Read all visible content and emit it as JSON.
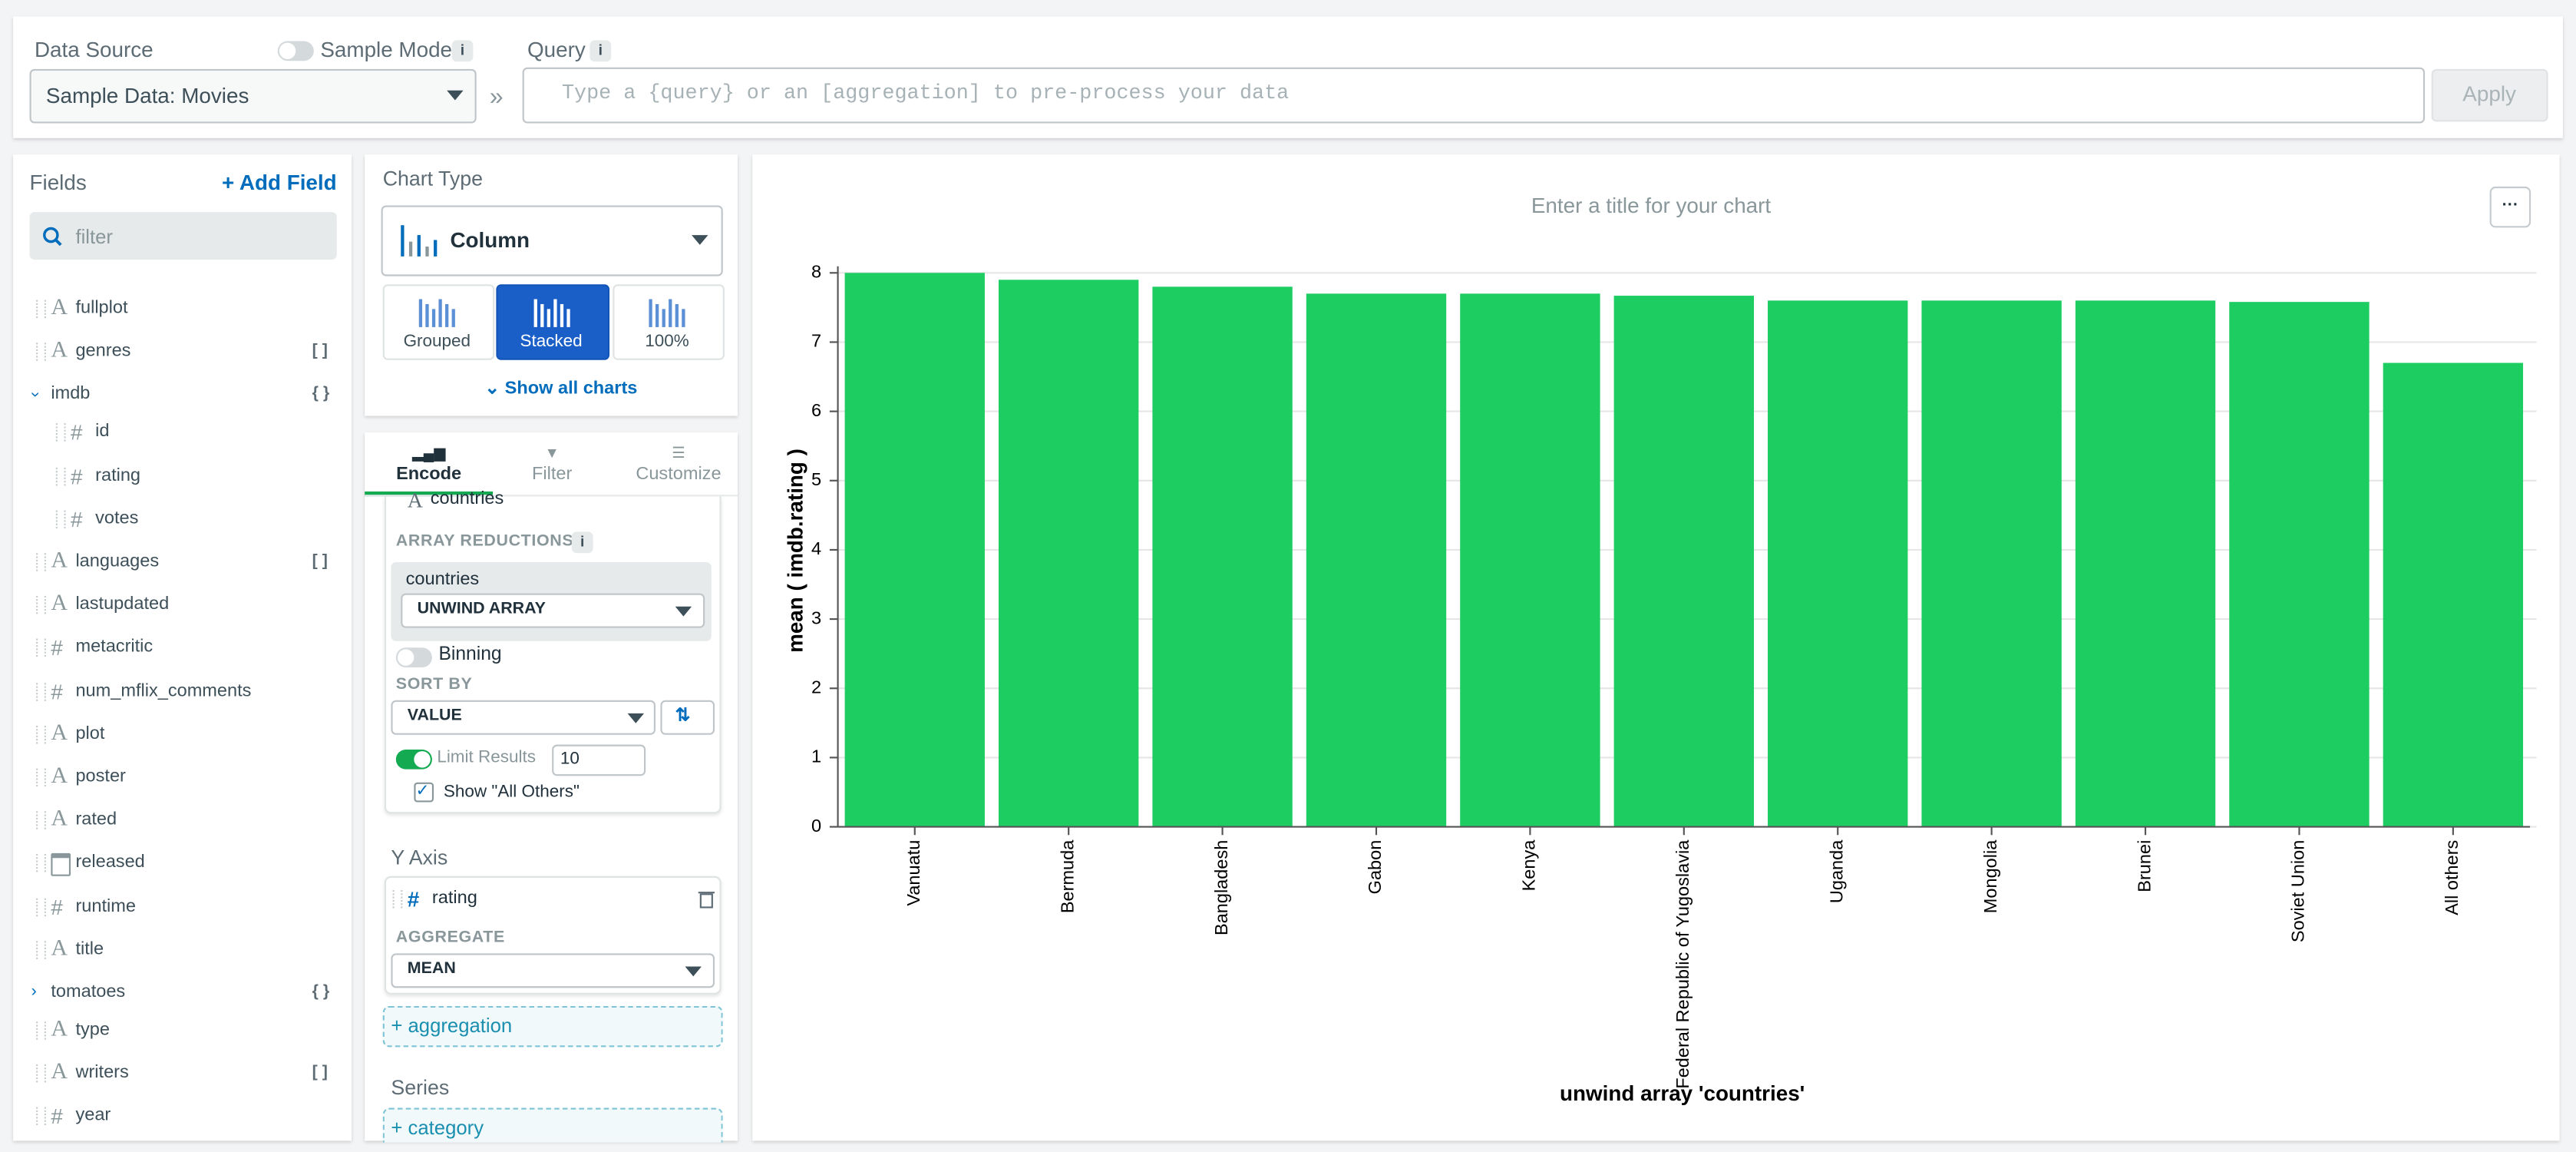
{
  "header": {
    "data_source_label": "Data Source",
    "sample_mode_label": "Sample Mode",
    "info": "i",
    "data_source": "Sample Data: Movies",
    "separator": "»",
    "query_label": "Query",
    "query_placeholder": "Type a {query} or an [aggregation] to pre-process your data",
    "apply": "Apply"
  },
  "fields": {
    "title": "Fields",
    "add_field": "+ Add Field",
    "filter_placeholder": "filter",
    "items": [
      {
        "icon": "A",
        "name": "fullplot"
      },
      {
        "icon": "A",
        "name": "genres",
        "badge": "[ ]"
      },
      {
        "name": "imdb",
        "badge": "{ }",
        "expanded": true,
        "children": [
          {
            "icon": "#",
            "name": "id"
          },
          {
            "icon": "#",
            "name": "rating"
          },
          {
            "icon": "#",
            "name": "votes"
          }
        ]
      },
      {
        "icon": "A",
        "name": "languages",
        "badge": "[ ]"
      },
      {
        "icon": "A",
        "name": "lastupdated"
      },
      {
        "icon": "#",
        "name": "metacritic"
      },
      {
        "icon": "#",
        "name": "num_mflix_comments"
      },
      {
        "icon": "A",
        "name": "plot"
      },
      {
        "icon": "A",
        "name": "poster"
      },
      {
        "icon": "A",
        "name": "rated"
      },
      {
        "name": "released"
      },
      {
        "icon": "#",
        "name": "runtime"
      },
      {
        "icon": "A",
        "name": "title"
      },
      {
        "name": "tomatoes",
        "badge": "{ }",
        "expanded": false
      },
      {
        "icon": "A",
        "name": "type"
      },
      {
        "icon": "A",
        "name": "writers",
        "badge": "[ ]"
      },
      {
        "icon": "#",
        "name": "year"
      }
    ]
  },
  "chart_type": {
    "title": "Chart Type",
    "selected": "Column",
    "variants": [
      "Grouped",
      "Stacked",
      "100%"
    ],
    "show_all": "Show all charts"
  },
  "encode": {
    "tabs": [
      "Encode",
      "Filter",
      "Customize"
    ],
    "x_field": "countries",
    "array_reductions": "ARRAY REDUCTIONS",
    "reduction_field": "countries",
    "reduction": "UNWIND ARRAY",
    "binning": "Binning",
    "sort_by": "SORT BY",
    "sort_value": "VALUE",
    "limit_label": "Limit Results",
    "limit": "10",
    "show_all_others": "Show \"All Others\"",
    "y_axis": "Y Axis",
    "y_field": "rating",
    "y_icon": "#",
    "x_icon": "A",
    "aggregate": "AGGREGATE",
    "aggregate_value": "MEAN",
    "add_aggregation": "+ aggregation",
    "series": "Series",
    "add_category": "+ category"
  },
  "chart_data": {
    "type": "bar",
    "title": "Enter a title for your chart",
    "menu": "···",
    "x_label": "unwind array 'countries'",
    "y_label": "mean ( imdb.rating )",
    "categories": [
      "Vanuatu",
      "Bermuda",
      "Bangladesh",
      "Gabon",
      "Kenya",
      "Federal Republic of Yugoslavia",
      "Uganda",
      "Mongolia",
      "Brunei",
      "Soviet Union",
      "All others"
    ],
    "values": [
      8.0,
      7.9,
      7.8,
      7.7,
      7.7,
      7.67,
      7.6,
      7.6,
      7.6,
      7.58,
      6.7
    ],
    "color": "#1ecd61",
    "ylim": [
      0,
      8
    ],
    "yticks": [
      0,
      1,
      2,
      3,
      4,
      5,
      6,
      7,
      8
    ],
    "grid": true
  }
}
